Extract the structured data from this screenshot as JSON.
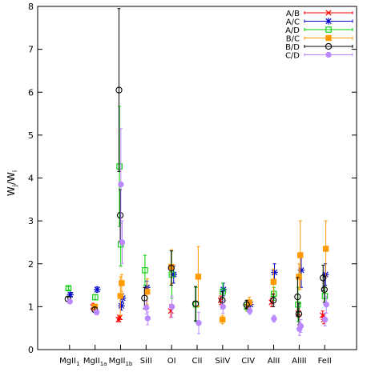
{
  "chart_data": {
    "type": "scatter",
    "title": "",
    "ylabel": "W_j/W_i",
    "xlabel": "",
    "ylim": [
      0,
      8
    ],
    "yticks": [
      0,
      1,
      2,
      3,
      4,
      5,
      6,
      7,
      8
    ],
    "categories": [
      {
        "base": "MgII",
        "sub": "1"
      },
      {
        "base": "MgII",
        "sub": "1a"
      },
      {
        "base": "MgII",
        "sub": "1b"
      },
      {
        "base": "SiII",
        "sub": ""
      },
      {
        "base": "OI",
        "sub": ""
      },
      {
        "base": "CII",
        "sub": ""
      },
      {
        "base": "SiIV",
        "sub": ""
      },
      {
        "base": "CIV",
        "sub": ""
      },
      {
        "base": "AlII",
        "sub": ""
      },
      {
        "base": "AlIII",
        "sub": ""
      },
      {
        "base": "FeII",
        "sub": ""
      }
    ],
    "legend_position": "top-right",
    "grid": false,
    "series": [
      {
        "name": "A/B",
        "color": "#ff0000",
        "marker": "x",
        "points": [
          {
            "cat": 1,
            "y": 1.0,
            "err": 0.08
          },
          {
            "cat": 2,
            "y": 0.75,
            "err": 0.05
          },
          {
            "cat": 2,
            "y": 0.7,
            "err": 0.05
          },
          {
            "cat": 4,
            "y": 0.9,
            "err": 0.15
          },
          {
            "cat": 6,
            "y": 1.15,
            "err": 0.1
          },
          {
            "cat": 7,
            "y": 1.0,
            "err": 0.1
          },
          {
            "cat": 8,
            "y": 1.1,
            "err": 0.1
          },
          {
            "cat": 9,
            "y": 0.85,
            "err": 0.1
          },
          {
            "cat": 10,
            "y": 0.8,
            "err": 0.1
          },
          {
            "cat": 10,
            "y": 0.7,
            "err": 0.1
          }
        ]
      },
      {
        "name": "A/C",
        "color": "#0000cc",
        "marker": "star",
        "points": [
          {
            "cat": 0,
            "y": 1.28,
            "err": 0.05
          },
          {
            "cat": 1,
            "y": 1.4,
            "err": 0.06
          },
          {
            "cat": 2,
            "y": 1.02,
            "err": 0.1
          },
          {
            "cat": 2,
            "y": 1.2,
            "err": 0.1
          },
          {
            "cat": 3,
            "y": 1.45,
            "err": 0.15
          },
          {
            "cat": 4,
            "y": 1.75,
            "err": 0.2
          },
          {
            "cat": 6,
            "y": 1.4,
            "err": 0.15
          },
          {
            "cat": 7,
            "y": 1.05,
            "err": 0.1
          },
          {
            "cat": 8,
            "y": 1.8,
            "err": 0.2
          },
          {
            "cat": 9,
            "y": 1.85,
            "err": 0.4
          },
          {
            "cat": 10,
            "y": 1.75,
            "err": 0.25
          }
        ]
      },
      {
        "name": "A/D",
        "color": "#00cc00",
        "marker": "square",
        "points": [
          {
            "cat": 0,
            "y": 1.43,
            "err": 0.04
          },
          {
            "cat": 1,
            "y": 1.22,
            "err": 0.06
          },
          {
            "cat": 2,
            "y": 4.27,
            "err": 1.4
          },
          {
            "cat": 2,
            "y": 2.45,
            "err": 0.5
          },
          {
            "cat": 3,
            "y": 1.85,
            "err": 0.35
          },
          {
            "cat": 4,
            "y": 1.75,
            "err": 0.55
          },
          {
            "cat": 5,
            "y": 1.05,
            "err": 0.4
          },
          {
            "cat": 6,
            "y": 1.35,
            "err": 0.2
          },
          {
            "cat": 7,
            "y": 1.0,
            "err": 0.1
          },
          {
            "cat": 8,
            "y": 1.3,
            "err": 0.15
          },
          {
            "cat": 9,
            "y": 1.05,
            "err": 0.4
          },
          {
            "cat": 10,
            "y": 1.25,
            "err": 0.2
          }
        ]
      },
      {
        "name": "B/C",
        "color": "#ff9900",
        "marker": "filled-square",
        "points": [
          {
            "cat": 1,
            "y": 1.0,
            "err": 0.06
          },
          {
            "cat": 2,
            "y": 1.55,
            "err": 0.2
          },
          {
            "cat": 2,
            "y": 1.25,
            "err": 0.45
          },
          {
            "cat": 3,
            "y": 1.35,
            "err": 0.3
          },
          {
            "cat": 4,
            "y": 1.93,
            "err": 0.4
          },
          {
            "cat": 5,
            "y": 1.7,
            "err": 0.7
          },
          {
            "cat": 6,
            "y": 0.7,
            "err": 0.1
          },
          {
            "cat": 7,
            "y": 1.1,
            "err": 0.12
          },
          {
            "cat": 8,
            "y": 1.58,
            "err": 0.3
          },
          {
            "cat": 9,
            "y": 2.2,
            "err": 0.8
          },
          {
            "cat": 9,
            "y": 1.7,
            "err": 0.3
          },
          {
            "cat": 10,
            "y": 2.35,
            "err": 0.65
          }
        ]
      },
      {
        "name": "B/D",
        "color": "#000000",
        "marker": "circle",
        "points": [
          {
            "cat": 0,
            "y": 1.18,
            "err": 0.05
          },
          {
            "cat": 1,
            "y": 0.93,
            "err": 0.06
          },
          {
            "cat": 2,
            "y": 6.05,
            "err": 1.9
          },
          {
            "cat": 2,
            "y": 3.13,
            "err": 0.6
          },
          {
            "cat": 3,
            "y": 1.2,
            "err": 0.25
          },
          {
            "cat": 4,
            "y": 1.9,
            "err": 0.4
          },
          {
            "cat": 5,
            "y": 1.07,
            "err": 0.4
          },
          {
            "cat": 6,
            "y": 1.15,
            "err": 0.2
          },
          {
            "cat": 7,
            "y": 1.05,
            "err": 0.1
          },
          {
            "cat": 8,
            "y": 1.15,
            "err": 0.15
          },
          {
            "cat": 9,
            "y": 1.23,
            "err": 0.45
          },
          {
            "cat": 9,
            "y": 0.83,
            "err": 0.25
          },
          {
            "cat": 10,
            "y": 1.67,
            "err": 0.3
          },
          {
            "cat": 10,
            "y": 1.4,
            "err": 0.3
          }
        ]
      },
      {
        "name": "C/D",
        "color": "#bb88ff",
        "marker": "filled-circle",
        "points": [
          {
            "cat": 0,
            "y": 1.12,
            "err": 0.04
          },
          {
            "cat": 1,
            "y": 0.87,
            "err": 0.06
          },
          {
            "cat": 2,
            "y": 3.85,
            "err": 1.3
          },
          {
            "cat": 2,
            "y": 2.5,
            "err": 0.5
          },
          {
            "cat": 3,
            "y": 0.98,
            "err": 0.15
          },
          {
            "cat": 3,
            "y": 0.73,
            "err": 0.15
          },
          {
            "cat": 4,
            "y": 1.0,
            "err": 0.25
          },
          {
            "cat": 5,
            "y": 0.62,
            "err": 0.25
          },
          {
            "cat": 6,
            "y": 1.0,
            "err": 0.15
          },
          {
            "cat": 7,
            "y": 0.9,
            "err": 0.08
          },
          {
            "cat": 8,
            "y": 0.72,
            "err": 0.08
          },
          {
            "cat": 9,
            "y": 0.55,
            "err": 0.15
          },
          {
            "cat": 9,
            "y": 0.48,
            "err": 0.15
          },
          {
            "cat": 10,
            "y": 1.05,
            "err": 0.2
          },
          {
            "cat": 10,
            "y": 0.7,
            "err": 0.15
          }
        ]
      }
    ]
  }
}
